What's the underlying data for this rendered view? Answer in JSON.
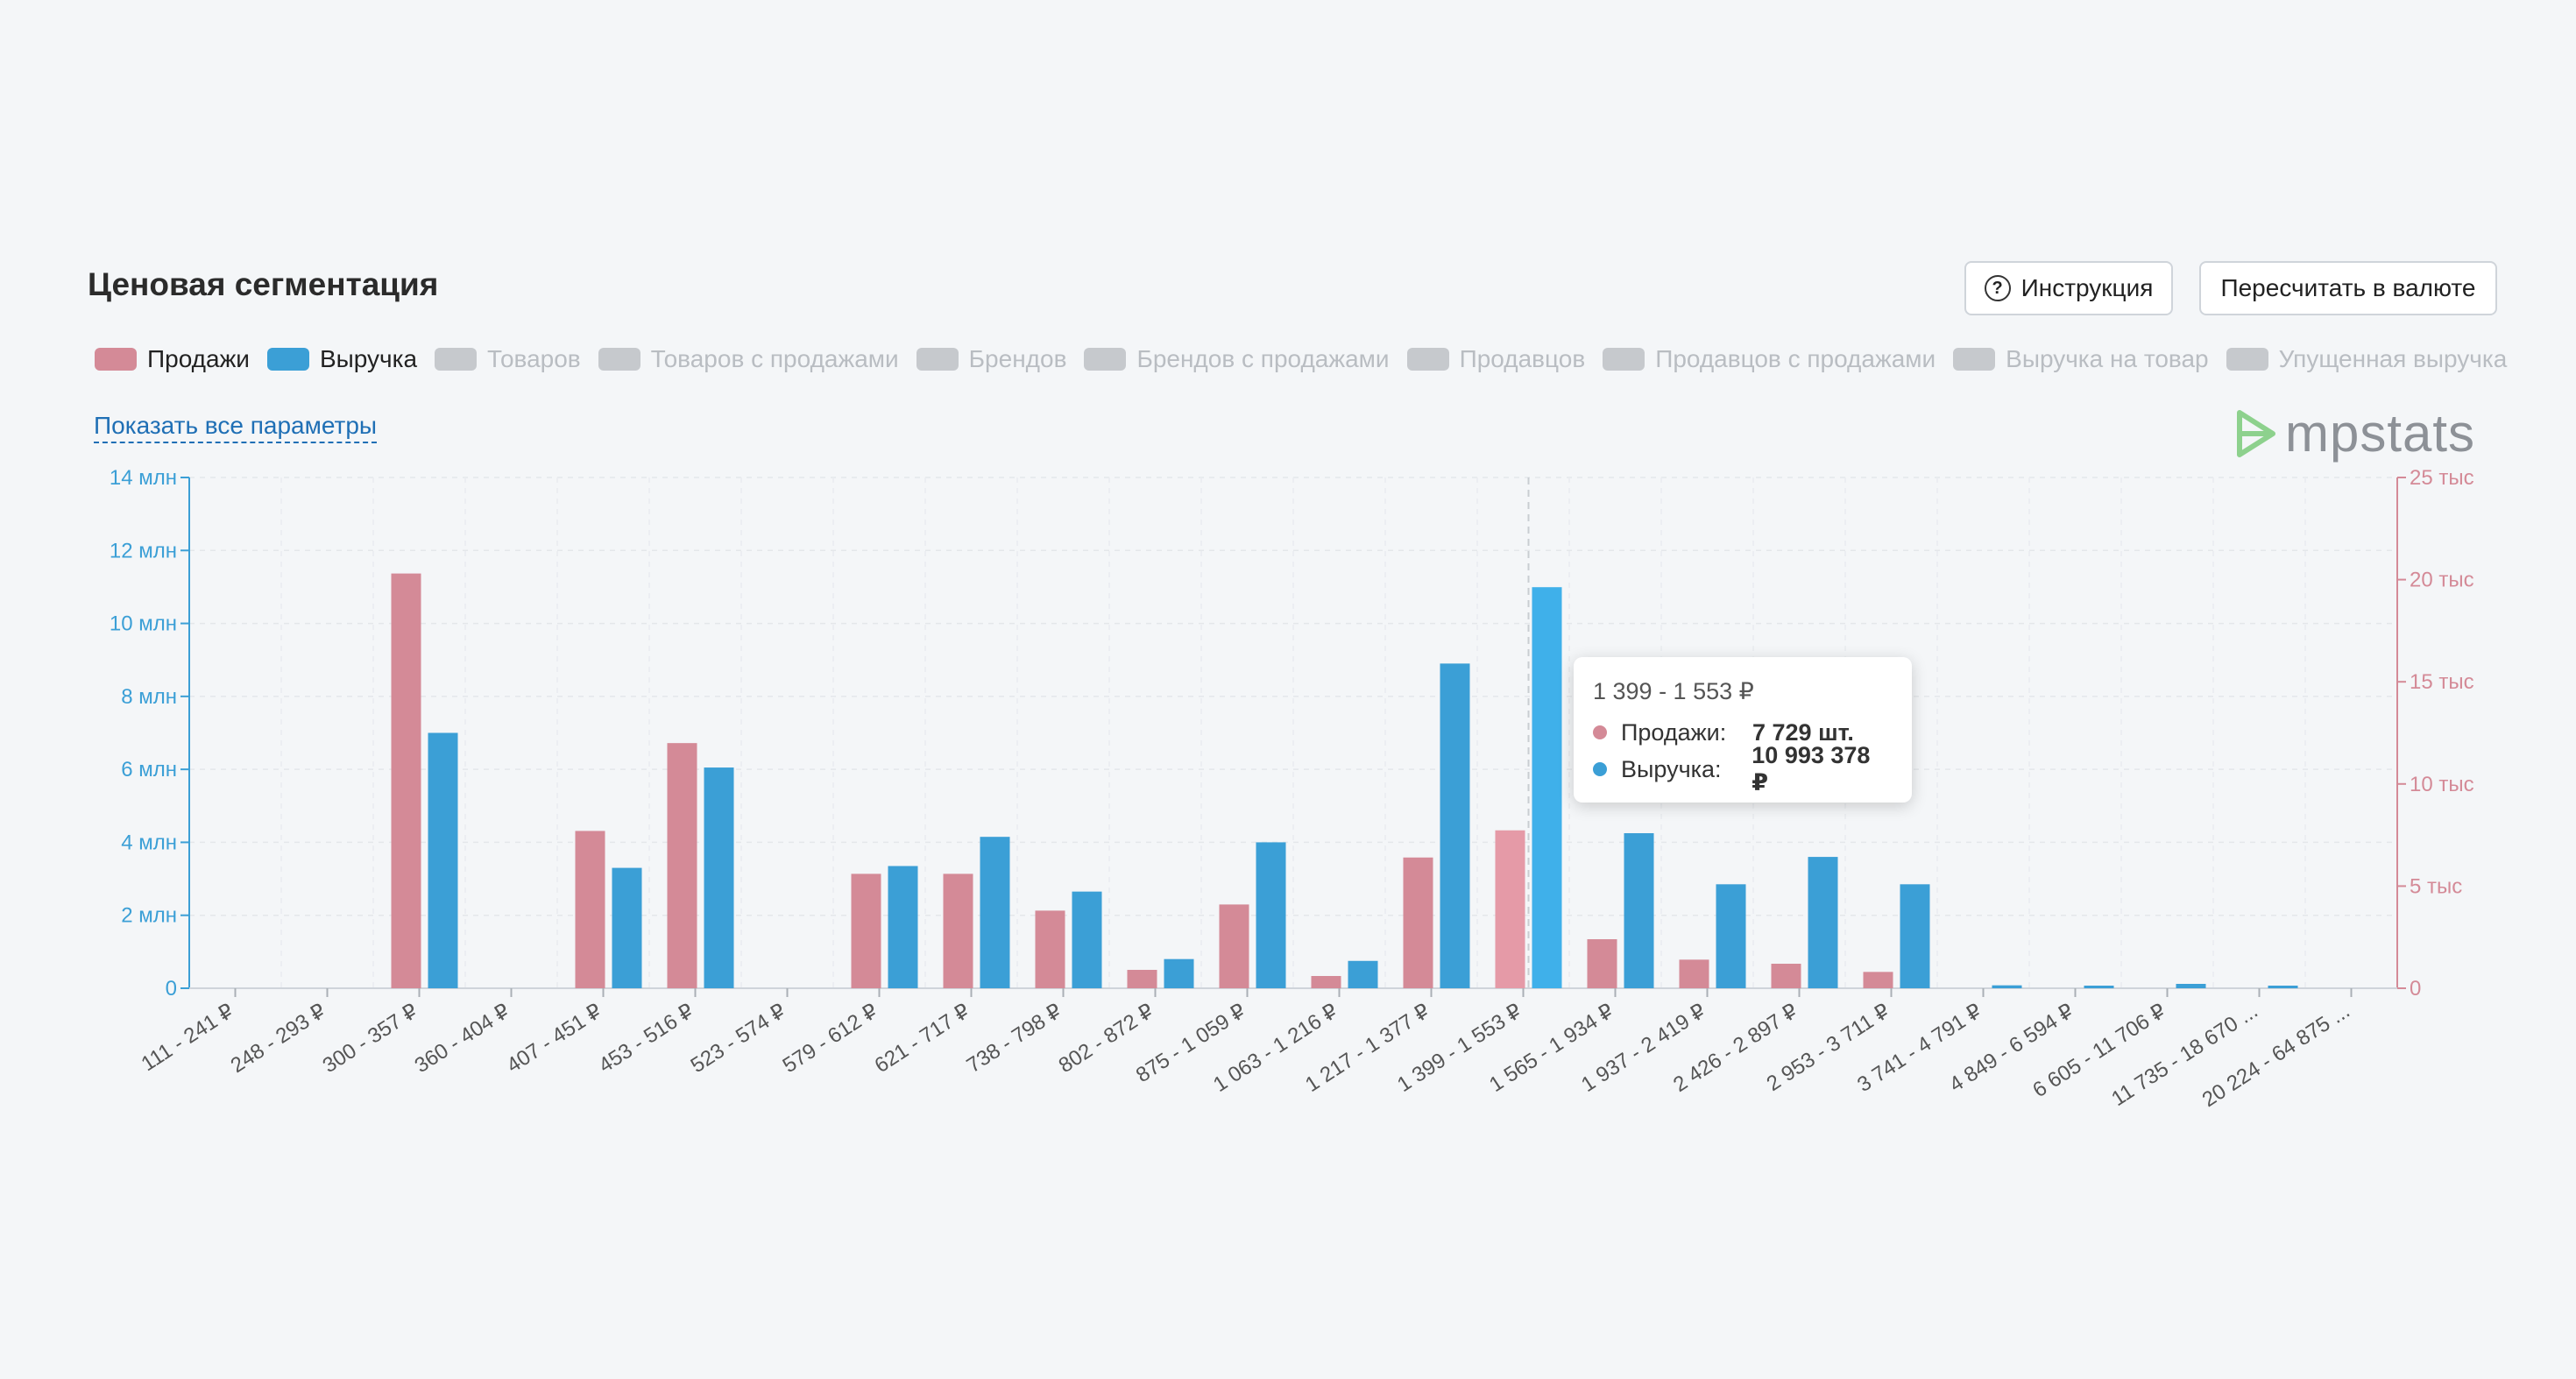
{
  "header": {
    "title": "Ценовая сегментация",
    "instruction_label": "Инструкция",
    "currency_label": "Пересчитать в валюте"
  },
  "legend": [
    {
      "label": "Продажи",
      "active": true,
      "color": "#d48a97"
    },
    {
      "label": "Выручка",
      "active": true,
      "color": "#3b9fd6"
    },
    {
      "label": "Товаров",
      "active": false
    },
    {
      "label": "Товаров с продажами",
      "active": false
    },
    {
      "label": "Брендов",
      "active": false
    },
    {
      "label": "Брендов с продажами",
      "active": false
    },
    {
      "label": "Продавцов",
      "active": false
    },
    {
      "label": "Продавцов с продажами",
      "active": false
    },
    {
      "label": "Выручка на товар",
      "active": false
    },
    {
      "label": "Упущенная выручка",
      "active": false
    }
  ],
  "show_all_label": "Показать все параметры",
  "brand": {
    "name": "mpstats"
  },
  "tooltip": {
    "range": "1 399 - 1 553 ₽",
    "rows": [
      {
        "label": "Продажи:",
        "value": "7 729 шт.",
        "color": "#d48a97"
      },
      {
        "label": "Выручка:",
        "value": "10 993 378 ₽",
        "color": "#3b9fd6"
      }
    ]
  },
  "chart_data": {
    "type": "bar",
    "categories": [
      "111 - 241 ₽",
      "248 - 293 ₽",
      "300 - 357 ₽",
      "360 - 404 ₽",
      "407 - 451 ₽",
      "453 - 516 ₽",
      "523 - 574 ₽",
      "579 - 612 ₽",
      "621 - 717 ₽",
      "738 - 798 ₽",
      "802 - 872 ₽",
      "875 - 1 059 ₽",
      "1 063 - 1 216 ₽",
      "1 217 - 1 377 ₽",
      "1 399 - 1 553 ₽",
      "1 565 - 1 934 ₽",
      "1 937 - 2 419 ₽",
      "2 426 - 2 897 ₽",
      "2 953 - 3 711 ₽",
      "3 741 - 4 791 ₽",
      "4 849 - 6 594 ₽",
      "6 605 - 11 706 ₽",
      "11 735 - 18 670 ...",
      "20 224 - 64 875 ..."
    ],
    "series": [
      {
        "name": "Продажи",
        "axis": "right",
        "color": "#d48a97",
        "values": [
          0,
          0,
          20300,
          0,
          7700,
          12000,
          0,
          5600,
          5600,
          3800,
          900,
          4100,
          600,
          6400,
          7729,
          2400,
          1400,
          1200,
          800,
          0,
          0,
          0,
          0,
          0
        ]
      },
      {
        "name": "Выручка",
        "axis": "left",
        "color": "#3b9fd6",
        "values": [
          0,
          0,
          7000000,
          0,
          3300000,
          6050000,
          0,
          3350000,
          4150000,
          2650000,
          800000,
          4000000,
          750000,
          8900000,
          10993378,
          4250000,
          2850000,
          3600000,
          2850000,
          80000,
          60000,
          120000,
          40000,
          0
        ]
      }
    ],
    "left_axis": {
      "ylim": [
        0,
        14000000
      ],
      "ticks": [
        "0",
        "2 млн",
        "4 млн",
        "6 млн",
        "8 млн",
        "10 млн",
        "12 млн",
        "14 млн"
      ],
      "color": "#3b9fd6"
    },
    "right_axis": {
      "ylim": [
        0,
        25000
      ],
      "ticks": [
        "0",
        "5 тыс",
        "10 тыс",
        "15 тыс",
        "20 тыс",
        "25 тыс"
      ],
      "color": "#d48a97"
    },
    "highlight_index": 14,
    "grid": true
  }
}
